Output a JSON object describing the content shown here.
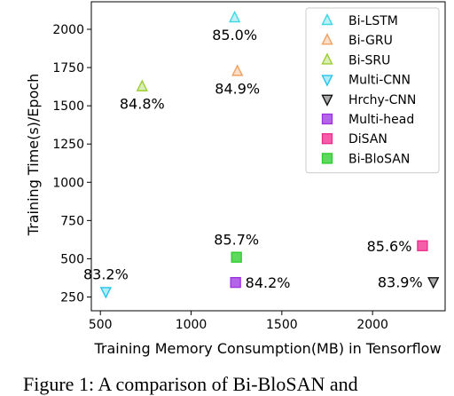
{
  "chart_data": {
    "type": "scatter",
    "title": "",
    "xlabel": "Training Memory Consumption(MB) in Tensorflow",
    "ylabel": "Training Time(s)/Epoch",
    "xlim": [
      450,
      2400
    ],
    "ylim": [
      160,
      2180
    ],
    "x_ticks": [
      500,
      1000,
      1500,
      2000
    ],
    "y_ticks": [
      250,
      500,
      750,
      1000,
      1250,
      1500,
      1750,
      2000
    ],
    "x_tick_labels": [
      "500",
      "1000",
      "1500",
      "2000"
    ],
    "y_tick_labels": [
      "250",
      "500",
      "750",
      "1000",
      "1250",
      "1500",
      "1750",
      "2000"
    ],
    "grid": false,
    "legend_position": "top-right",
    "series": [
      {
        "name": "Bi-LSTM",
        "marker": "triangle-up",
        "color": "#3fd7e4",
        "x": 1240,
        "y": 2075,
        "label": "85.0%",
        "label_pos": "below"
      },
      {
        "name": "Bi-GRU",
        "marker": "triangle-up",
        "color": "#f0a060",
        "x": 1255,
        "y": 1725,
        "label": "84.9%",
        "label_pos": "below"
      },
      {
        "name": "Bi-SRU",
        "marker": "triangle-up",
        "color": "#9acd32",
        "x": 730,
        "y": 1625,
        "label": "84.8%",
        "label_pos": "below"
      },
      {
        "name": "Multi-CNN",
        "marker": "triangle-down",
        "color": "#22c5ec",
        "x": 530,
        "y": 285,
        "label": "83.2%",
        "label_pos": "above"
      },
      {
        "name": "Hrchy-CNN",
        "marker": "triangle-down",
        "color": "#111111",
        "x": 2335,
        "y": 350,
        "label": "83.9%",
        "label_pos": "left"
      },
      {
        "name": "Multi-head",
        "marker": "square",
        "color": "#9b30e0",
        "x": 1245,
        "y": 345,
        "label": "84.2%",
        "label_pos": "right"
      },
      {
        "name": "DiSAN",
        "marker": "square",
        "color": "#f0288c",
        "x": 2275,
        "y": 585,
        "label": "85.6%",
        "label_pos": "left"
      },
      {
        "name": "Bi-BloSAN",
        "marker": "square",
        "color": "#28cc28",
        "x": 1250,
        "y": 510,
        "label": "85.7%",
        "label_pos": "above"
      }
    ]
  },
  "caption": "Figure 1: A comparison of Bi-BloSAN and"
}
